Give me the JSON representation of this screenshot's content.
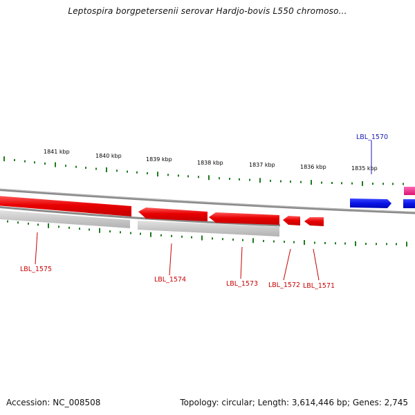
{
  "title": "Leptospira borgpetersenii serovar Hardjo-bovis L550 chromoso...",
  "footer": {
    "accession": "Accession: NC_008508",
    "stats": "Topology: circular; Length: 3,614,446 bp; Genes: 2,745"
  },
  "colors": {
    "forward_gene": "#0a14e6",
    "reverse_gene": "#e80000",
    "other_gene": "#e6197f",
    "backbone": "#8a8a8a",
    "tick": "#1e7a1e",
    "forward_label": "#1a1ab4",
    "reverse_label": "#c80000"
  },
  "ruler": {
    "labels": [
      "1841 kbp",
      "1840 kbp",
      "1839 kbp",
      "1838 kbp",
      "1837 kbp",
      "1836 kbp",
      "1835 kbp"
    ]
  },
  "genes": [
    {
      "name": "LBL_1570",
      "strand": "forward"
    },
    {
      "name": "LBL_1571",
      "strand": "reverse"
    },
    {
      "name": "LBL_1572",
      "strand": "reverse"
    },
    {
      "name": "LBL_1573",
      "strand": "reverse"
    },
    {
      "name": "LBL_1574",
      "strand": "reverse"
    },
    {
      "name": "LBL_1575",
      "strand": "reverse"
    }
  ]
}
